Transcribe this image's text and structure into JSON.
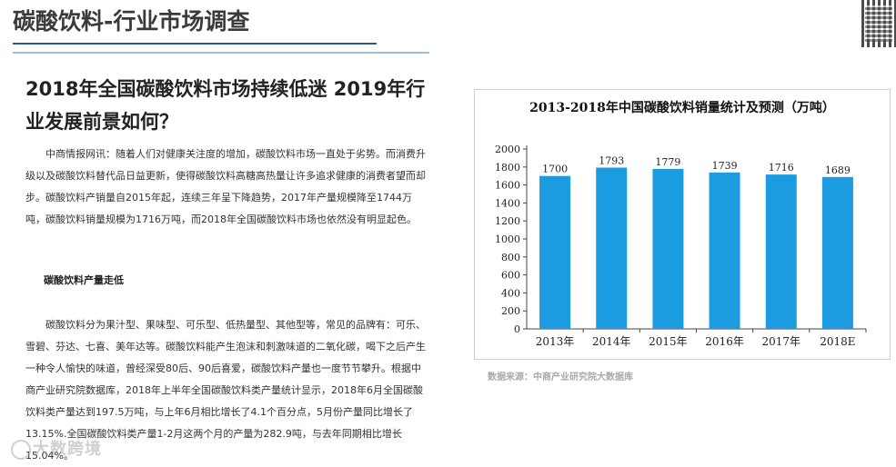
{
  "header": {
    "title": "碳酸饮料-行业市场调查"
  },
  "article": {
    "headline": "2018年全国碳酸饮料市场持续低迷 2019年行业发展前景如何？",
    "paragraph_1": "中商情报网讯：随着人们对健康关注度的增加，碳酸饮料市场一直处于劣势。而消费升级以及碳酸饮料替代品日益更新，使得碳酸饮料高糖高热量让许多追求健康的消费者望而却步。碳酸饮料产销量自2015年起，连续三年呈下降趋势，2017年产量规模降至1744万吨，碳酸饮料销量规模为1716万吨，而2018年全国碳酸饮料市场也依然没有明显起色。",
    "section_heading": "碳酸饮料产量走低",
    "paragraph_2": "碳酸饮料分为果汁型、果味型、可乐型、低热量型、其他型等，常见的品牌有：可乐、雪碧、芬达、七喜、美年达等。碳酸饮料能产生泡沫和刺激味道的二氧化碳，喝下之后产生一种令人愉快的味道，曾经深受80后、90后喜爱，碳酸饮料产量也一度节节攀升。根据中商产业研究院数据库，2018年上半年全国碳酸饮料类产量统计显示，2018年6月全国碳酸饮料类产量达到197.5万吨，与上年6月相比增长了4.1个百分点，5月份产量同比增长了13.15%.全国碳酸饮料类产量1-2月这两个月的产量为282.9吨，与去年同期相比增长15.04%。"
  },
  "source_note": "数据来源：中商产业研究院大数据库",
  "watermark": "大数跨境",
  "colors": {
    "bar": "#1b9be0",
    "title_rule": "#2f5597",
    "title_rule_light": "#9fbbe0"
  },
  "chart_data": {
    "type": "bar",
    "title": "2013-2018年中国碳酸饮料销量统计及预测（万吨）",
    "categories": [
      "2013年",
      "2014年",
      "2015年",
      "2016年",
      "2017年",
      "2018E"
    ],
    "values": [
      1700,
      1793,
      1779,
      1739,
      1716,
      1689
    ],
    "value_labels": [
      "1700",
      "1793",
      "1779",
      "1739",
      "1716",
      "1689"
    ],
    "ylim": [
      0,
      2000
    ],
    "yticks": [
      "0",
      "200",
      "400",
      "600",
      "800",
      "1000",
      "1200",
      "1400",
      "1600",
      "1800",
      "2000"
    ],
    "ytick_values": [
      0,
      200,
      400,
      600,
      800,
      1000,
      1200,
      1400,
      1600,
      1800,
      2000
    ],
    "grid": false,
    "legend": "none"
  }
}
